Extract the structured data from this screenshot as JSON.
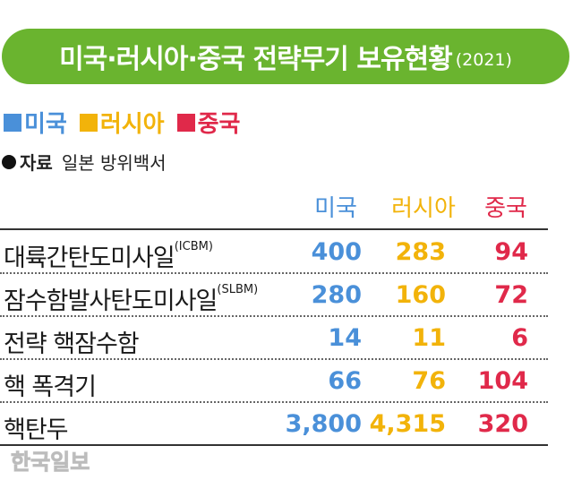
{
  "title": "미국·러시아·중국 전략무기 보유현황",
  "title_year": "(2021)",
  "legend": [
    {
      "name": "미국",
      "color": "#4a90d9"
    },
    {
      "name": "러시아",
      "color": "#f2b30a"
    },
    {
      "name": "중국",
      "color": "#e0294a"
    }
  ],
  "source": {
    "label": "자료",
    "text": "일본 방위백서"
  },
  "watermark": "한국일보",
  "chart_data": {
    "type": "table",
    "columns": [
      "미국",
      "러시아",
      "중국"
    ],
    "rows": [
      {
        "label": "대륙간탄도미사일",
        "sub": "(ICBM)",
        "values": [
          "400",
          "283",
          "94"
        ]
      },
      {
        "label": "잠수함발사탄도미사일",
        "sub": "(SLBM)",
        "values": [
          "280",
          "160",
          "72"
        ]
      },
      {
        "label": "전략 핵잠수함",
        "sub": "",
        "values": [
          "14",
          "11",
          "6"
        ]
      },
      {
        "label": "핵 폭격기",
        "sub": "",
        "values": [
          "66",
          "76",
          "104"
        ]
      },
      {
        "label": "핵탄두",
        "sub": "",
        "values": [
          "3,800",
          "4,315",
          "320"
        ]
      }
    ]
  }
}
